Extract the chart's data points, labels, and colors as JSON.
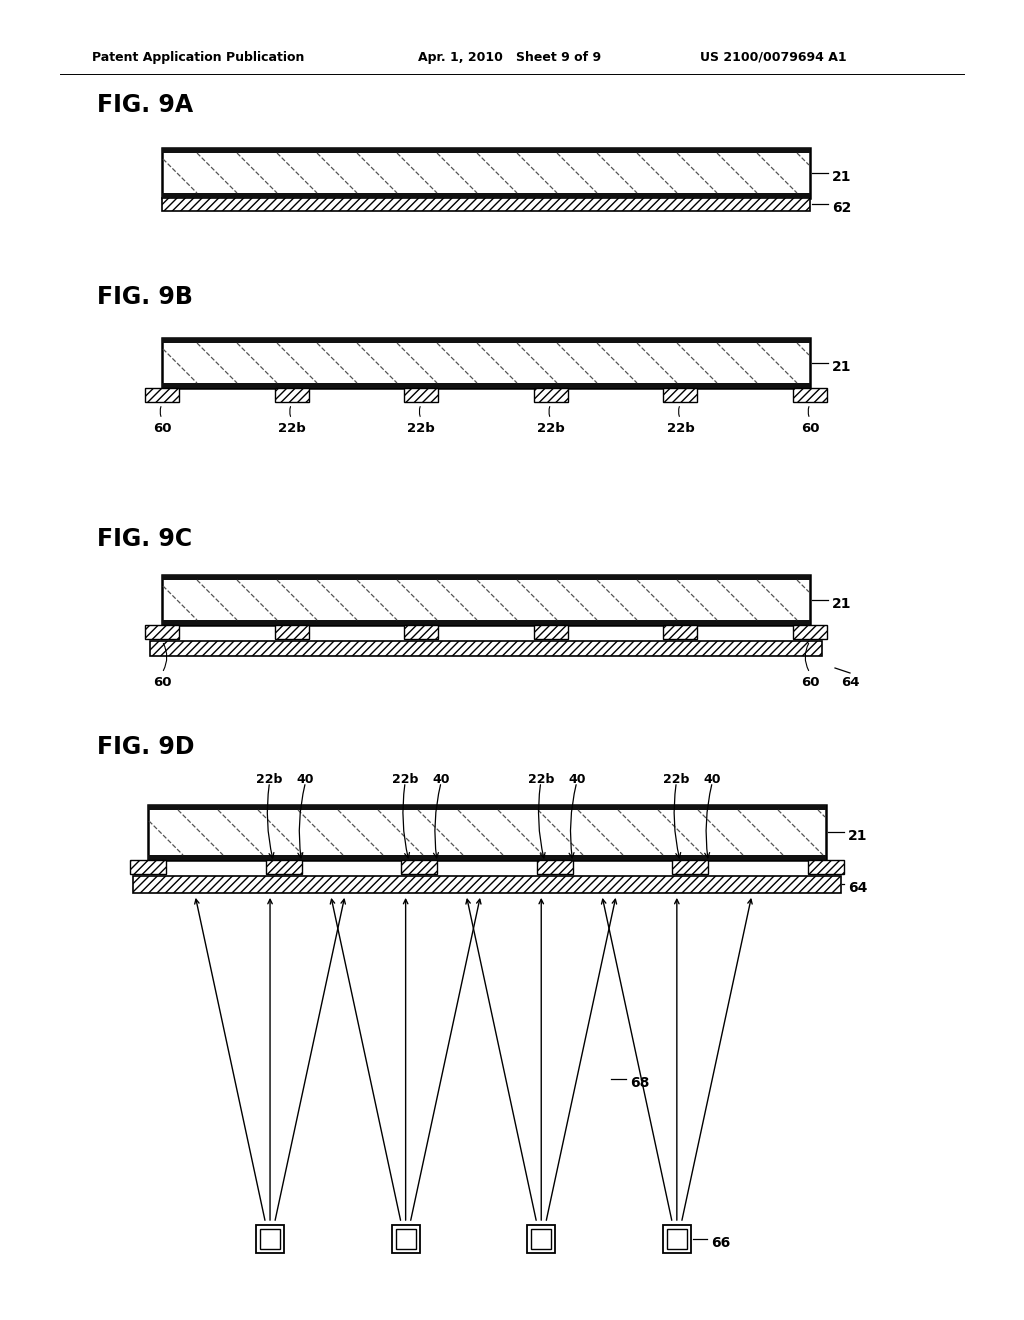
{
  "bg_color": "#ffffff",
  "header_left": "Patent Application Publication",
  "header_mid": "Apr. 1, 2010   Sheet 9 of 9",
  "header_right": "US 2100/0079694 A1",
  "line_color": "#000000"
}
